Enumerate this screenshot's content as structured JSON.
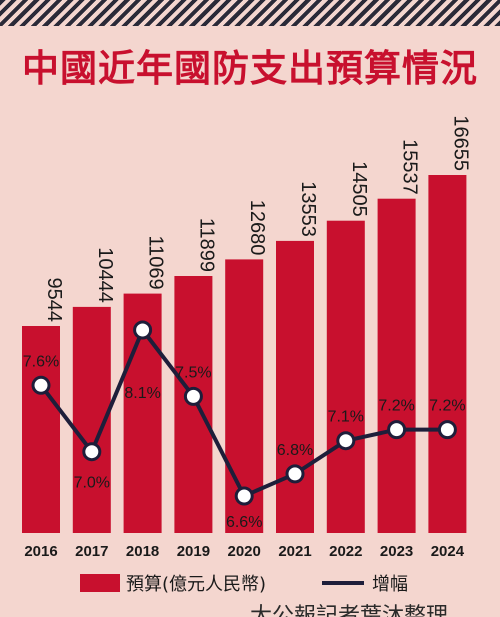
{
  "title": "中國近年國防支出預算情況",
  "legend": {
    "bar_label": "預算(億元人民幣)",
    "line_label": "增幅"
  },
  "credit": "大公報記者葉沐整理",
  "colors": {
    "bar": "#c8102e",
    "line": "#1e1e3a",
    "background": "#f4d6cf",
    "title": "#c8102e"
  },
  "chart_data": {
    "type": "bar",
    "categories": [
      "2016",
      "2017",
      "2018",
      "2019",
      "2020",
      "2021",
      "2022",
      "2023",
      "2024"
    ],
    "series": [
      {
        "name": "預算(億元人民幣)",
        "type": "bar",
        "values": [
          9544,
          10444,
          11069,
          11899,
          12680,
          13553,
          14505,
          15537,
          16655
        ],
        "labels": [
          "9544",
          "10444",
          "11069",
          "11899",
          "12680",
          "13553",
          "14505",
          "15537",
          "16655"
        ]
      },
      {
        "name": "增幅",
        "type": "line",
        "values": [
          7.6,
          7.0,
          8.1,
          7.5,
          6.6,
          6.8,
          7.1,
          7.2,
          7.2
        ],
        "labels": [
          "7.6%",
          "7.0%",
          "8.1%",
          "7.5%",
          "6.6%",
          "6.8%",
          "7.1%",
          "7.2%",
          "7.2%"
        ]
      }
    ],
    "legend_position": "bottom",
    "grid": false
  }
}
